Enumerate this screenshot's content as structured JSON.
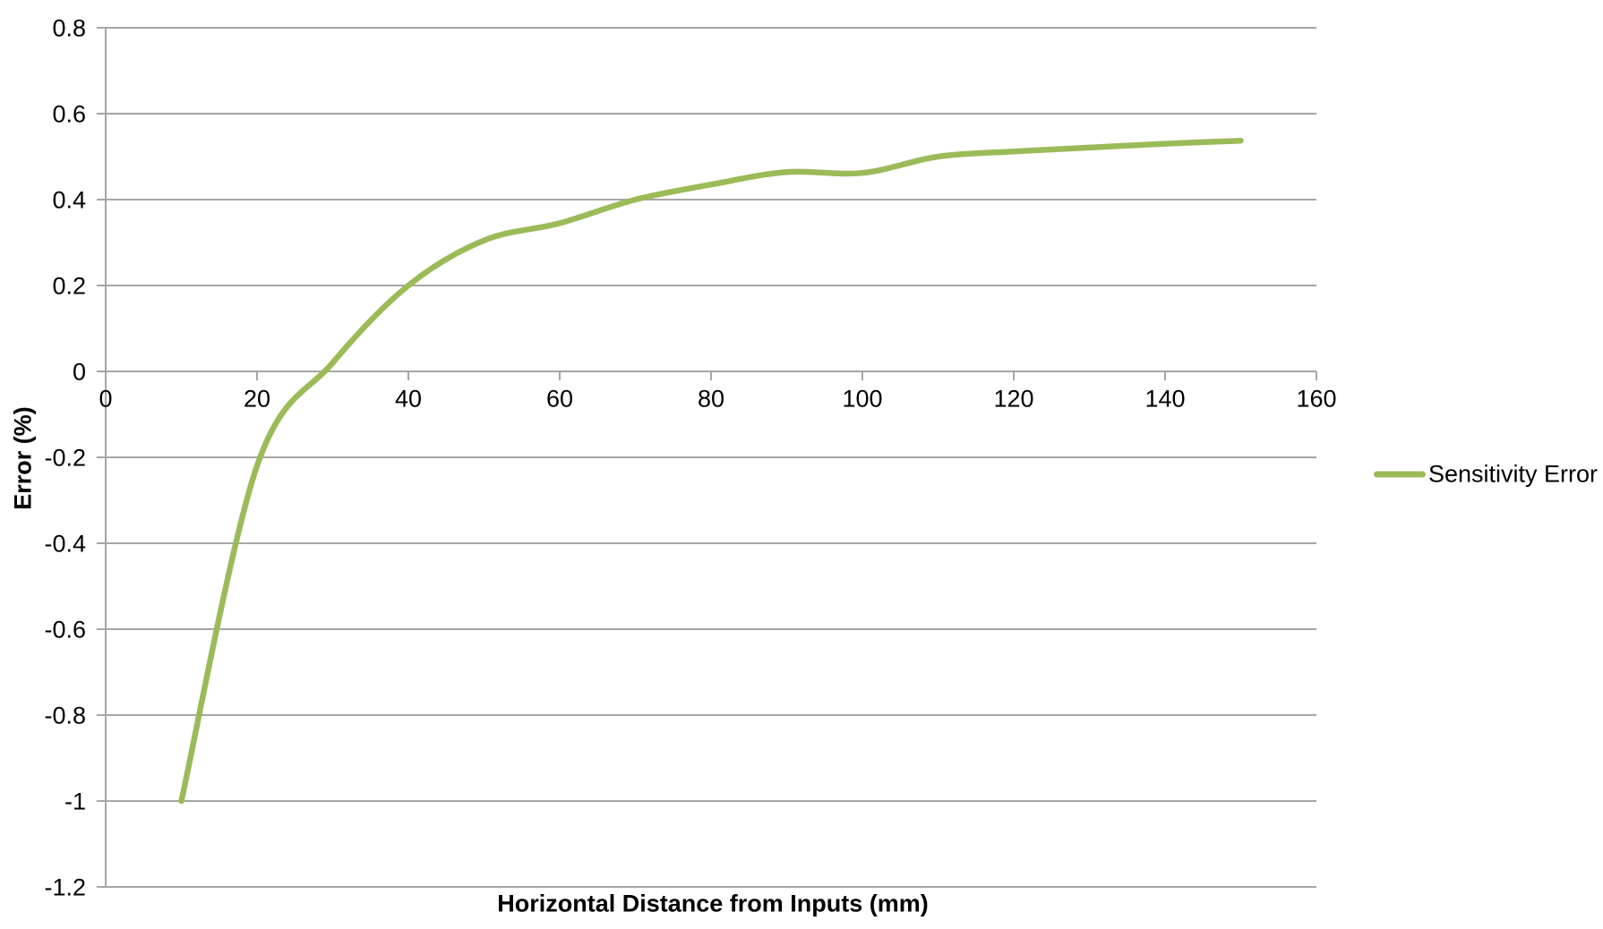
{
  "chart_data": {
    "type": "line",
    "title": "",
    "xlabel": "Horizontal Distance from Inputs (mm)",
    "ylabel": "Error (%)",
    "x": [
      10,
      20,
      30,
      40,
      50,
      60,
      70,
      80,
      90,
      100,
      110,
      120,
      130,
      140,
      150
    ],
    "series": [
      {
        "name": "Sensitivity Error",
        "color": "#9BBB59",
        "values": [
          -1.0,
          -0.22,
          0.02,
          0.2,
          0.305,
          0.345,
          0.4,
          0.435,
          0.464,
          0.462,
          0.5,
          0.512,
          0.521,
          0.53,
          0.537
        ]
      }
    ],
    "xlim": [
      0,
      160
    ],
    "ylim": [
      -1.2,
      0.8
    ],
    "x_ticks": [
      0,
      20,
      40,
      60,
      80,
      100,
      120,
      140,
      160
    ],
    "x_tick_labels": [
      "0",
      "20",
      "40",
      "60",
      "80",
      "100",
      "120",
      "140",
      "160"
    ],
    "y_ticks": [
      0.8,
      0.6,
      0.4,
      0.2,
      0,
      -0.2,
      -0.4,
      -0.6,
      -0.8,
      -1,
      -1.2
    ],
    "y_tick_labels": [
      "0.8",
      "0.6",
      "0.4",
      "0.2",
      "0",
      "-0.2",
      "-0.4",
      "-0.6",
      "-0.8",
      "-1",
      "-1.2"
    ],
    "grid": "horizontal-major-on",
    "smooth_line": true,
    "markers": false,
    "legend_position": "right-middle"
  },
  "legend": {
    "label": "Sensitivity Error"
  },
  "colors": {
    "line": "#9BBB59",
    "gridline": "#A6A6A6",
    "axis": "#A6A6A6",
    "text": "#000000",
    "background": "#FFFFFF"
  }
}
